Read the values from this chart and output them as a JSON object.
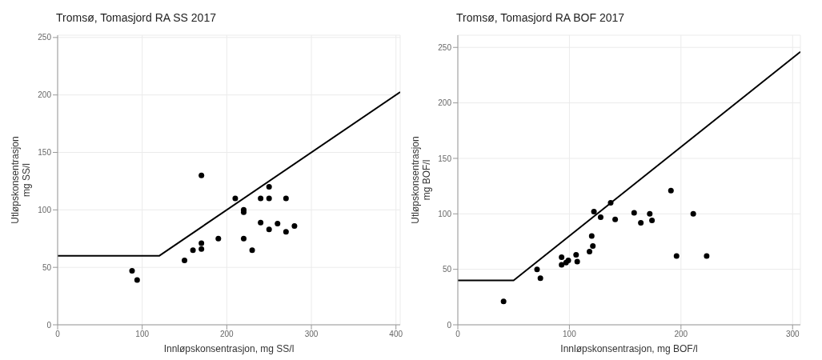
{
  "chart_data": [
    {
      "type": "scatter",
      "title": "Tromsø, Tomasjord RA SS 2017",
      "xlabel": "Innløpskonsentrasjon, mg SS/l",
      "ylabel": "Utløpskonsentrasjon\nmg SS/l",
      "xlim": [
        0,
        405
      ],
      "xticks": [
        0,
        100,
        200,
        300,
        400
      ],
      "ylim": [
        0,
        252
      ],
      "yticks": [
        0,
        50,
        100,
        150,
        200,
        250
      ],
      "grid": true,
      "marker": "circle",
      "series": [
        {
          "color": "#000000",
          "x": [
            88,
            94,
            150,
            160,
            170,
            170,
            170,
            190,
            210,
            220,
            220,
            220,
            230,
            240,
            240,
            250,
            250,
            250,
            260,
            270,
            270,
            280
          ],
          "values": [
            47,
            39,
            56,
            65,
            71,
            66,
            130,
            75,
            110,
            100,
            98,
            75,
            65,
            110,
            89,
            120,
            110,
            83,
            88,
            110,
            81,
            86
          ]
        },
        {
          "type": "line",
          "color": "#000000",
          "marker": "none",
          "line_style": "solid",
          "x": [
            0,
            120,
            405
          ],
          "values": [
            60,
            60,
            202.5
          ]
        }
      ]
    },
    {
      "type": "scatter",
      "title": "Tromsø, Tomasjord RA BOF 2017",
      "xlabel": "Innløpskonsentrasjon, mg BOF/l",
      "ylabel": "Utløpskonsentrasjon\nmg BOF/l",
      "xlim": [
        0,
        307
      ],
      "xticks": [
        0,
        100,
        200,
        300
      ],
      "ylim": [
        0,
        261
      ],
      "yticks": [
        0,
        50,
        100,
        150,
        200,
        250
      ],
      "grid": true,
      "marker": "circle",
      "series": [
        {
          "color": "#000000",
          "x": [
            41,
            71,
            74,
            93,
            93,
            97,
            99,
            106,
            107,
            118,
            120,
            121,
            122,
            128,
            137,
            141,
            158,
            164,
            172,
            174,
            191,
            196,
            211,
            223
          ],
          "values": [
            21,
            50,
            42,
            61,
            54,
            56,
            58,
            63,
            57,
            66,
            80,
            71,
            102,
            97,
            110,
            95,
            101,
            92,
            100,
            94,
            121,
            62,
            100,
            62
          ]
        },
        {
          "type": "line",
          "color": "#000000",
          "marker": "none",
          "line_style": "solid",
          "x": [
            0,
            50,
            307
          ],
          "values": [
            40,
            40,
            246
          ]
        }
      ]
    }
  ]
}
